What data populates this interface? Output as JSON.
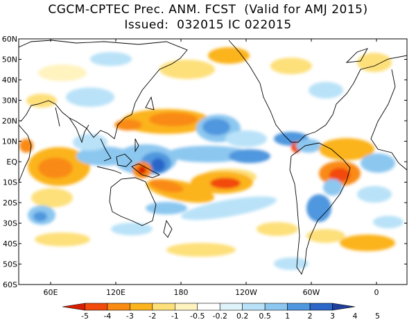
{
  "title": {
    "line1": "CGCM-CPTEC Prec. ANM. FCST  (Valid for AMJ 2015)",
    "line2": "Issued:  032015 IC 022015"
  },
  "axes": {
    "lat_labels": [
      "60N",
      "50N",
      "40N",
      "30N",
      "20N",
      "10N",
      "EQ",
      "10S",
      "20S",
      "30S",
      "40S",
      "50S",
      "60S"
    ],
    "lon_labels": [
      "60E",
      "120E",
      "180",
      "120W",
      "60W",
      "0"
    ]
  },
  "colorbar": {
    "labels": [
      "-5",
      "-4",
      "-3",
      "-2",
      "-1",
      "-0.5",
      "-0.2",
      "0.2",
      "0.5",
      "1",
      "2",
      "3",
      "4",
      "5"
    ],
    "colors": [
      "#d71e00",
      "#f24a0a",
      "#f98a12",
      "#fbb41c",
      "#fde07a",
      "#fff3c0",
      "#ffffff",
      "#dff3fb",
      "#b9e2f8",
      "#8cc7f0",
      "#4f97de",
      "#2b66c8",
      "#1e3f9e"
    ]
  },
  "colors": {
    "land_outline": "#000000",
    "neg_strong": "#f24a0a",
    "neg_mid": "#fbb41c",
    "neg_light": "#fde07a",
    "pos_light": "#b9e2f8",
    "pos_mid": "#4f97de",
    "pos_strong": "#2b66c8"
  }
}
